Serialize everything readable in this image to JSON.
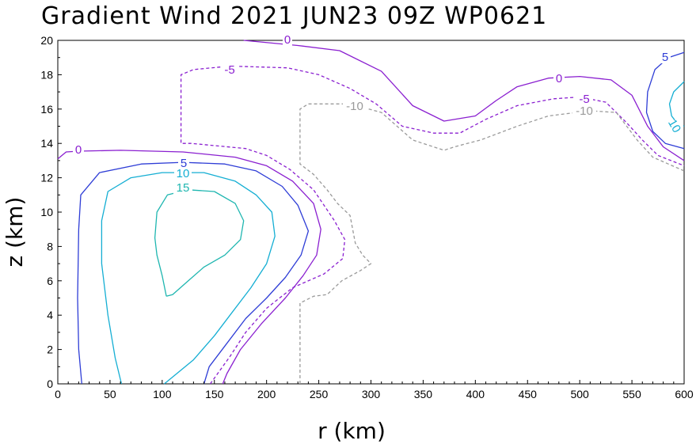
{
  "chart_data": {
    "type": "contour",
    "title": "Gradient Wind 2021 JUN23 09Z  WP0621",
    "xlabel": "r (km)",
    "ylabel": "z (km)",
    "xlim": [
      0,
      600
    ],
    "ylim": [
      0,
      20
    ],
    "x_ticks": [
      "0",
      "50",
      "100",
      "150",
      "200",
      "250",
      "300",
      "350",
      "400",
      "450",
      "500",
      "550",
      "600"
    ],
    "y_ticks": [
      "0",
      "2",
      "4",
      "6",
      "8",
      "10",
      "12",
      "14",
      "16",
      "18",
      "20"
    ],
    "contour_labels": {
      "c0_top": "0",
      "c0_left": "0",
      "c0_right": "0",
      "cm5_top": "-5",
      "cm5_right": "-5",
      "cm10_top": "-10",
      "cm10_right": "-10",
      "c5_left": "5",
      "c5_right": "5",
      "c10_left": "10",
      "c10_right": "10",
      "c15": "15"
    },
    "series": [
      {
        "name": "0",
        "value": 0,
        "color": "#8a1fd0",
        "dash": "solid",
        "points": [
          [
            0,
            13.1
          ],
          [
            8,
            13.5
          ],
          [
            20,
            13.55
          ],
          [
            60,
            13.6
          ],
          [
            120,
            13.5
          ],
          [
            170,
            13.2
          ],
          [
            200,
            12.7
          ],
          [
            225,
            11.8
          ],
          [
            245,
            10.5
          ],
          [
            252,
            9.0
          ],
          [
            248,
            7.5
          ],
          [
            235,
            6.3
          ],
          [
            218,
            5.0
          ],
          [
            195,
            3.5
          ],
          [
            175,
            2.0
          ],
          [
            162,
            0.6
          ],
          [
            158,
            0
          ]
        ]
      },
      {
        "name": "0_upper",
        "value": 0,
        "color": "#8a1fd0",
        "dash": "solid",
        "points": [
          [
            178,
            20
          ],
          [
            230,
            19.7
          ],
          [
            270,
            19.4
          ],
          [
            310,
            18.2
          ],
          [
            340,
            16.2
          ],
          [
            370,
            15.3
          ],
          [
            400,
            15.6
          ],
          [
            420,
            16.5
          ],
          [
            440,
            17.3
          ],
          [
            470,
            17.8
          ],
          [
            500,
            17.9
          ],
          [
            530,
            17.7
          ],
          [
            550,
            16.8
          ],
          [
            565,
            15.0
          ],
          [
            580,
            13.8
          ],
          [
            600,
            13.0
          ]
        ]
      },
      {
        "name": "-5",
        "value": -5,
        "color": "#8a1fd0",
        "dash": "dashed",
        "points": [
          [
            146,
            0
          ],
          [
            152,
            0.5
          ],
          [
            165,
            1.6
          ],
          [
            180,
            3.0
          ],
          [
            200,
            4.4
          ],
          [
            225,
            5.6
          ],
          [
            255,
            6.4
          ],
          [
            273,
            7.3
          ],
          [
            275,
            8.4
          ],
          [
            265,
            9.5
          ],
          [
            245,
            11.3
          ],
          [
            222,
            12.5
          ],
          [
            200,
            13.3
          ],
          [
            180,
            13.7
          ],
          [
            128,
            14.0
          ],
          [
            118,
            14.0
          ],
          [
            118,
            18.0
          ],
          [
            130,
            18.3
          ],
          [
            165,
            18.5
          ],
          [
            220,
            18.4
          ],
          [
            250,
            18.0
          ],
          [
            280,
            17.2
          ],
          [
            305,
            16.3
          ],
          [
            330,
            15.0
          ],
          [
            360,
            14.6
          ],
          [
            385,
            14.6
          ],
          [
            410,
            15.4
          ],
          [
            440,
            16.2
          ],
          [
            475,
            16.6
          ],
          [
            500,
            16.7
          ],
          [
            525,
            16.4
          ],
          [
            545,
            15.2
          ],
          [
            560,
            14.2
          ],
          [
            575,
            13.3
          ],
          [
            600,
            12.7
          ]
        ]
      },
      {
        "name": "-10",
        "value": -10,
        "color": "#9a9a9a",
        "dash": "dashed",
        "points": [
          [
            232,
            0
          ],
          [
            232,
            4.7
          ],
          [
            245,
            5.1
          ],
          [
            258,
            5.2
          ],
          [
            272,
            6.0
          ],
          [
            290,
            6.6
          ],
          [
            300,
            7.0
          ],
          [
            292,
            7.5
          ],
          [
            285,
            8.2
          ],
          [
            280,
            9.8
          ],
          [
            268,
            10.5
          ],
          [
            258,
            11.3
          ],
          [
            245,
            12.2
          ],
          [
            232,
            12.8
          ],
          [
            232,
            16.0
          ],
          [
            240,
            16.3
          ],
          [
            280,
            16.3
          ],
          [
            310,
            15.8
          ],
          [
            340,
            14.2
          ],
          [
            370,
            13.6
          ],
          [
            380,
            13.8
          ],
          [
            405,
            14.2
          ],
          [
            440,
            15.0
          ],
          [
            470,
            15.6
          ],
          [
            510,
            15.9
          ],
          [
            535,
            15.8
          ],
          [
            545,
            15.0
          ],
          [
            555,
            14.2
          ],
          [
            570,
            13.2
          ],
          [
            600,
            12.4
          ]
        ]
      },
      {
        "name": "5_left",
        "value": 5,
        "color": "#2e3dd6",
        "dash": "solid",
        "points": [
          [
            23,
            0
          ],
          [
            20,
            2
          ],
          [
            19,
            5
          ],
          [
            20,
            9
          ],
          [
            22,
            11
          ],
          [
            40,
            12.3
          ],
          [
            80,
            12.8
          ],
          [
            120,
            12.9
          ],
          [
            160,
            12.8
          ],
          [
            190,
            12.4
          ],
          [
            215,
            11.5
          ],
          [
            230,
            10.4
          ],
          [
            240,
            8.9
          ],
          [
            233,
            7.5
          ],
          [
            218,
            6.2
          ],
          [
            200,
            5.0
          ],
          [
            180,
            3.8
          ],
          [
            160,
            2.2
          ],
          [
            145,
            1.0
          ],
          [
            140,
            0
          ]
        ]
      },
      {
        "name": "10_left",
        "value": 10,
        "color": "#14aed3",
        "dash": "solid",
        "points": [
          [
            61,
            0
          ],
          [
            55,
            1.5
          ],
          [
            48,
            4
          ],
          [
            42,
            7
          ],
          [
            42,
            9.5
          ],
          [
            48,
            11.2
          ],
          [
            70,
            12.0
          ],
          [
            100,
            12.3
          ],
          [
            140,
            12.3
          ],
          [
            170,
            11.8
          ],
          [
            190,
            11.0
          ],
          [
            205,
            10.0
          ],
          [
            208,
            8.6
          ],
          [
            200,
            7.0
          ],
          [
            185,
            5.6
          ],
          [
            165,
            4.0
          ],
          [
            150,
            2.8
          ],
          [
            130,
            1.4
          ],
          [
            102,
            0
          ]
        ]
      },
      {
        "name": "15",
        "value": 15,
        "color": "#1fb6b0",
        "dash": "solid",
        "points": [
          [
            104,
            5.1
          ],
          [
            110,
            5.2
          ],
          [
            125,
            6.0
          ],
          [
            140,
            6.8
          ],
          [
            160,
            7.5
          ],
          [
            175,
            8.4
          ],
          [
            178,
            9.5
          ],
          [
            170,
            10.5
          ],
          [
            150,
            11.2
          ],
          [
            125,
            11.3
          ],
          [
            105,
            11.0
          ],
          [
            95,
            10.0
          ],
          [
            93,
            8.5
          ],
          [
            95,
            7.5
          ],
          [
            100,
            6.3
          ],
          [
            104,
            5.1
          ]
        ]
      },
      {
        "name": "5_right",
        "value": 5,
        "color": "#2e3dd6",
        "dash": "solid",
        "points": [
          [
            600,
            19.3
          ],
          [
            585,
            19.0
          ],
          [
            572,
            18.3
          ],
          [
            565,
            17.0
          ],
          [
            564,
            15.8
          ],
          [
            570,
            14.7
          ],
          [
            582,
            14.0
          ],
          [
            600,
            13.7
          ]
        ]
      },
      {
        "name": "10_right",
        "value": 10,
        "color": "#14aed3",
        "dash": "solid",
        "points": [
          [
            600,
            17.6
          ],
          [
            590,
            17.0
          ],
          [
            586,
            16.3
          ],
          [
            588,
            15.6
          ],
          [
            593,
            15.2
          ],
          [
            600,
            15.0
          ]
        ]
      }
    ]
  }
}
